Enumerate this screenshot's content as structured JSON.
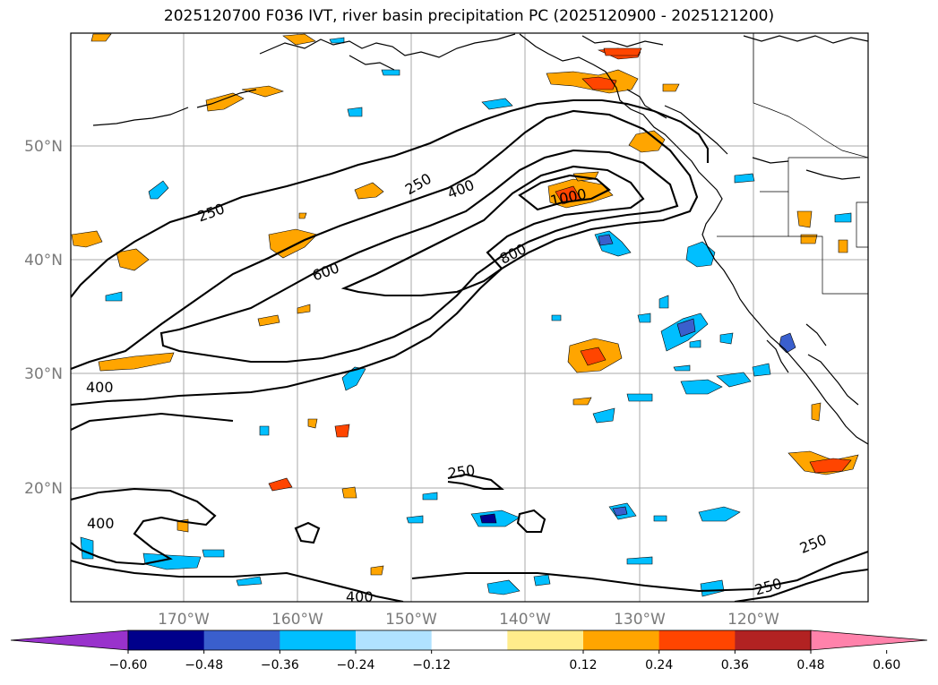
{
  "title": "2025120700 F036 IVT, river basin precipitation PC (2025120900 - 2025121200)",
  "map": {
    "lat_labels": [
      "50°N",
      "40°N",
      "30°N",
      "20°N"
    ],
    "lon_labels": [
      "170°W",
      "160°W",
      "150°W",
      "140°W",
      "130°W",
      "120°W"
    ],
    "gridlines": true,
    "contour_levels": [
      "250",
      "400",
      "600",
      "800",
      "1000"
    ],
    "contour_labels": [
      {
        "text": "250",
        "level": 250
      },
      {
        "text": "400",
        "level": 400
      },
      {
        "text": "250",
        "level": 250
      },
      {
        "text": "1000",
        "level": 1000
      },
      {
        "text": "600",
        "level": 600
      },
      {
        "text": "800",
        "level": 800
      },
      {
        "text": "400",
        "level": 400
      },
      {
        "text": "250",
        "level": 250
      },
      {
        "text": "400",
        "level": 400
      },
      {
        "text": "250",
        "level": 250
      },
      {
        "text": "250",
        "level": 250
      },
      {
        "text": "400",
        "level": 400
      }
    ]
  },
  "colorbar": {
    "tick_labels": [
      "−0.60",
      "−0.48",
      "−0.36",
      "−0.24",
      "−0.12",
      "0.12",
      "0.24",
      "0.36",
      "0.48",
      "0.60"
    ],
    "colors": [
      "#9932cc",
      "#00008b",
      "#3a5fcd",
      "#00bfff",
      "#b0e2ff",
      "#ffffff",
      "#ffec8b",
      "#ffa500",
      "#ff4500",
      "#b22222",
      "#ff82ab"
    ]
  }
}
